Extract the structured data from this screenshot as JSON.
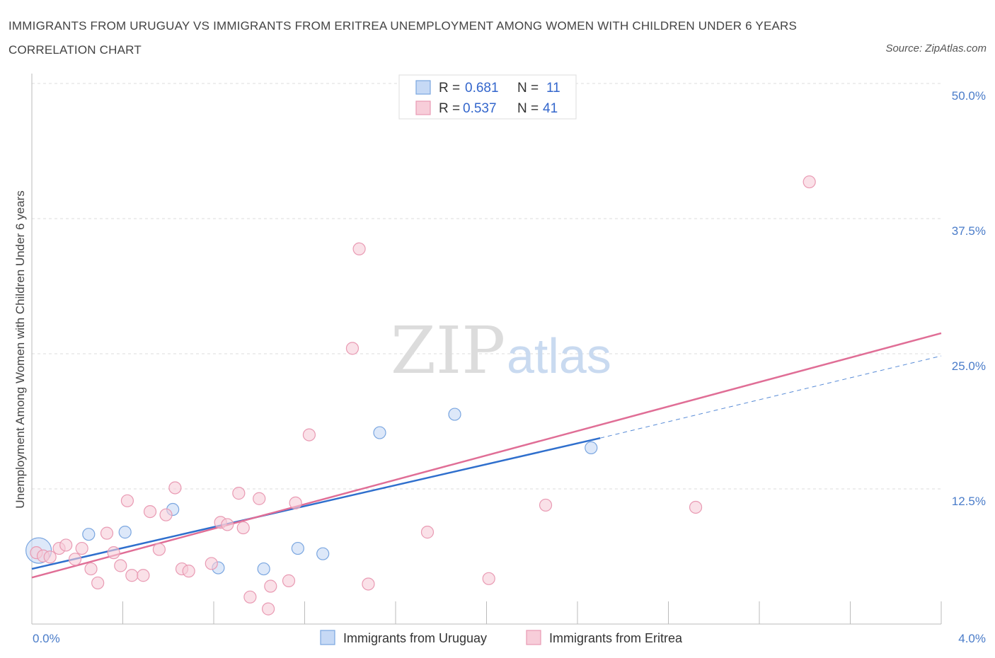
{
  "title": "IMMIGRANTS FROM URUGUAY VS IMMIGRANTS FROM ERITREA UNEMPLOYMENT AMONG WOMEN WITH CHILDREN UNDER 6 YEARS CORRELATION CHART",
  "source": "Source: ZipAtlas.com",
  "watermark": {
    "zip": "ZIP",
    "atlas": "atlas"
  },
  "legend": {
    "r_label": "R =",
    "n_label": "N =",
    "rows": [
      {
        "name": "Immigrants from Uruguay",
        "r": "0.681",
        "n": "11"
      },
      {
        "name": "Immigrants from Eritrea",
        "r": "0.537",
        "n": "41"
      }
    ]
  },
  "chart_data": {
    "type": "scatter",
    "ylabel": "Unemployment Among Women with Children Under 6 years",
    "xlabel": "",
    "xlim": [
      0,
      4
    ],
    "ylim": [
      0,
      50
    ],
    "x_tick_labels": [
      {
        "value": 0,
        "label": "0.0%"
      },
      {
        "value": 4,
        "label": "4.0%"
      }
    ],
    "y_tick_labels": [
      {
        "value": 12.5,
        "label": "12.5%"
      },
      {
        "value": 25,
        "label": "25.0%"
      },
      {
        "value": 37.5,
        "label": "37.5%"
      },
      {
        "value": 50,
        "label": "50.0%"
      }
    ],
    "grid": true,
    "legend_position": "top-center",
    "series": [
      {
        "name": "Immigrants from Uruguay",
        "color": "#7aa6e0",
        "fill": "#c6d9f5",
        "line_color": "#2f6fcd",
        "trend": {
          "x": [
            0,
            2.5
          ],
          "y": [
            5.1,
            17.2
          ],
          "dashed_to": [
            4,
            24.8
          ]
        },
        "points": [
          {
            "x": 0.03,
            "y": 6.8,
            "big": true
          },
          {
            "x": 0.25,
            "y": 8.3
          },
          {
            "x": 0.41,
            "y": 8.5
          },
          {
            "x": 0.62,
            "y": 10.6
          },
          {
            "x": 0.82,
            "y": 5.2
          },
          {
            "x": 1.02,
            "y": 5.1
          },
          {
            "x": 1.17,
            "y": 7.0
          },
          {
            "x": 1.28,
            "y": 6.5
          },
          {
            "x": 1.53,
            "y": 17.7
          },
          {
            "x": 1.86,
            "y": 19.4
          },
          {
            "x": 2.46,
            "y": 16.3
          }
        ]
      },
      {
        "name": "Immigrants from Eritrea",
        "color": "#e99ab3",
        "fill": "#f7cdd9",
        "line_color": "#e06e96",
        "trend": {
          "x": [
            0,
            4
          ],
          "y": [
            4.3,
            26.9
          ]
        },
        "points": [
          {
            "x": 0.02,
            "y": 6.6
          },
          {
            "x": 0.05,
            "y": 6.3
          },
          {
            "x": 0.08,
            "y": 6.2
          },
          {
            "x": 0.12,
            "y": 7.0
          },
          {
            "x": 0.15,
            "y": 7.3
          },
          {
            "x": 0.19,
            "y": 6.0
          },
          {
            "x": 0.22,
            "y": 7.0
          },
          {
            "x": 0.26,
            "y": 5.1
          },
          {
            "x": 0.29,
            "y": 3.8
          },
          {
            "x": 0.33,
            "y": 8.4
          },
          {
            "x": 0.36,
            "y": 6.6
          },
          {
            "x": 0.39,
            "y": 5.4
          },
          {
            "x": 0.42,
            "y": 11.4
          },
          {
            "x": 0.44,
            "y": 4.5
          },
          {
            "x": 0.49,
            "y": 4.5
          },
          {
            "x": 0.52,
            "y": 10.4
          },
          {
            "x": 0.56,
            "y": 6.9
          },
          {
            "x": 0.59,
            "y": 10.1
          },
          {
            "x": 0.63,
            "y": 12.6
          },
          {
            "x": 0.66,
            "y": 5.1
          },
          {
            "x": 0.69,
            "y": 4.9
          },
          {
            "x": 0.79,
            "y": 5.6
          },
          {
            "x": 0.83,
            "y": 9.4
          },
          {
            "x": 0.86,
            "y": 9.2
          },
          {
            "x": 0.91,
            "y": 12.1
          },
          {
            "x": 0.93,
            "y": 8.9
          },
          {
            "x": 0.96,
            "y": 2.5
          },
          {
            "x": 1.0,
            "y": 11.6
          },
          {
            "x": 1.04,
            "y": 1.4
          },
          {
            "x": 1.05,
            "y": 3.5
          },
          {
            "x": 1.13,
            "y": 4.0
          },
          {
            "x": 1.16,
            "y": 11.2
          },
          {
            "x": 1.22,
            "y": 17.5
          },
          {
            "x": 1.41,
            "y": 25.5
          },
          {
            "x": 1.44,
            "y": 34.7
          },
          {
            "x": 1.48,
            "y": 3.7
          },
          {
            "x": 1.74,
            "y": 8.5
          },
          {
            "x": 2.01,
            "y": 4.2
          },
          {
            "x": 2.26,
            "y": 11.0
          },
          {
            "x": 2.92,
            "y": 10.8
          },
          {
            "x": 3.42,
            "y": 40.9
          }
        ]
      }
    ]
  }
}
